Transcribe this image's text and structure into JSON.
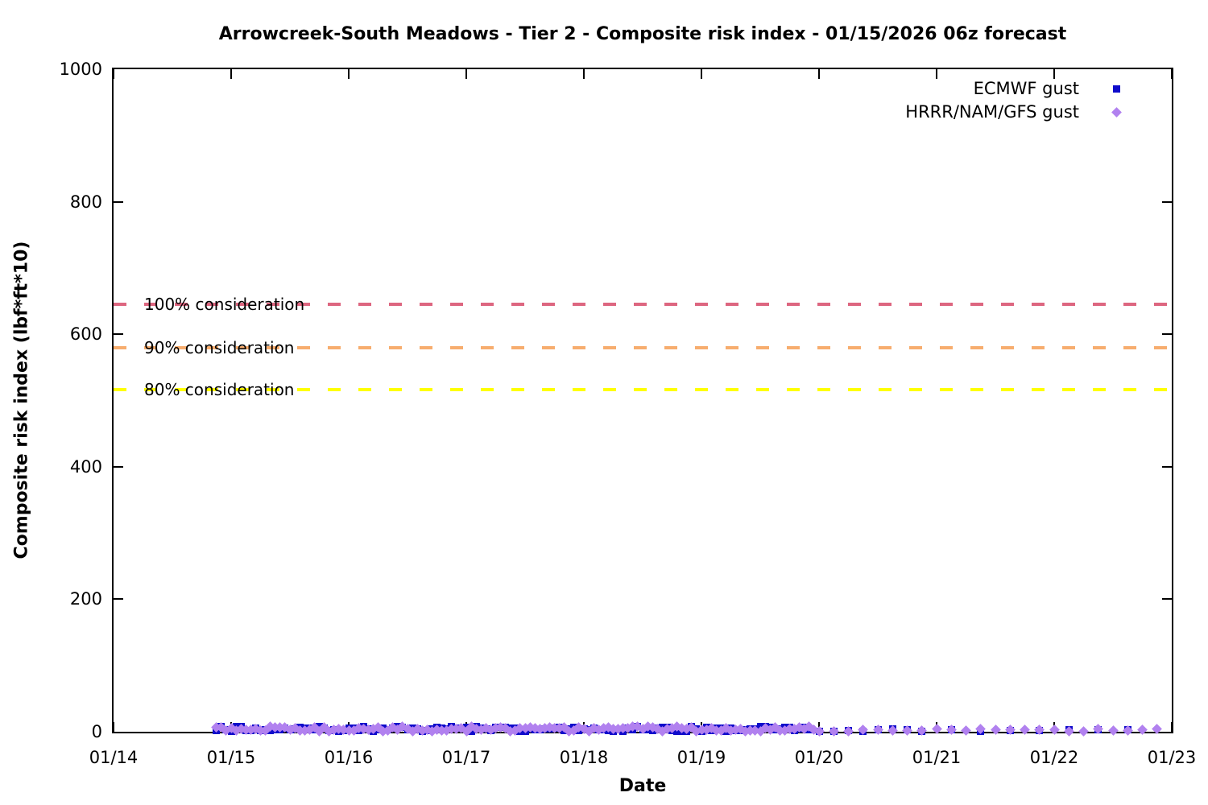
{
  "chart_data": {
    "type": "scatter",
    "title": "Arrowcreek-South Meadows - Tier 2 - Composite risk index - 01/15/2026 06z forecast",
    "xlabel": "Date",
    "ylabel": "Composite risk index (lbf*ft*10)",
    "x_tick_labels": [
      "01/14",
      "01/15",
      "01/16",
      "01/17",
      "01/18",
      "01/19",
      "01/20",
      "01/21",
      "01/22",
      "01/23"
    ],
    "x_range_hours": [
      0,
      216
    ],
    "ylim": [
      0,
      1000
    ],
    "y_ticks": [
      0,
      200,
      400,
      600,
      800,
      1000
    ],
    "grid": false,
    "background": "#ffffff",
    "border_color": "#000000",
    "legend_position": "top-right-inside",
    "thresholds": [
      {
        "label": "100% consideration",
        "value": 645,
        "color": "#dd6680",
        "style": "dashed"
      },
      {
        "label": "90% consideration",
        "value": 580,
        "color": "#f7ad6e",
        "style": "dashed"
      },
      {
        "label": "80% consideration",
        "value": 516,
        "color": "#ffff00",
        "style": "dashed"
      }
    ],
    "series": [
      {
        "name": "ECMWF gust",
        "marker": "square",
        "color": "#0f0bcb",
        "seed": 7,
        "segments": [
          {
            "from_hour": 21,
            "to_hour": 142,
            "step_hours": 1,
            "y_min": 0,
            "y_max": 8
          },
          {
            "from_hour": 144,
            "to_hour": 162,
            "step_hours": 3,
            "y_min": 0,
            "y_max": 4
          },
          {
            "from_hour": 165,
            "to_hour": 207,
            "step_hours": 6,
            "y_min": 0,
            "y_max": 4
          }
        ]
      },
      {
        "name": "HRRR/NAM/GFS gust",
        "marker": "diamond",
        "color": "#b181ef",
        "seed": 13,
        "segments": [
          {
            "from_hour": 21,
            "to_hour": 143,
            "step_hours": 1,
            "y_min": 0,
            "y_max": 8
          },
          {
            "from_hour": 144,
            "to_hour": 213,
            "step_hours": 3,
            "y_min": 0,
            "y_max": 4
          }
        ]
      }
    ]
  }
}
